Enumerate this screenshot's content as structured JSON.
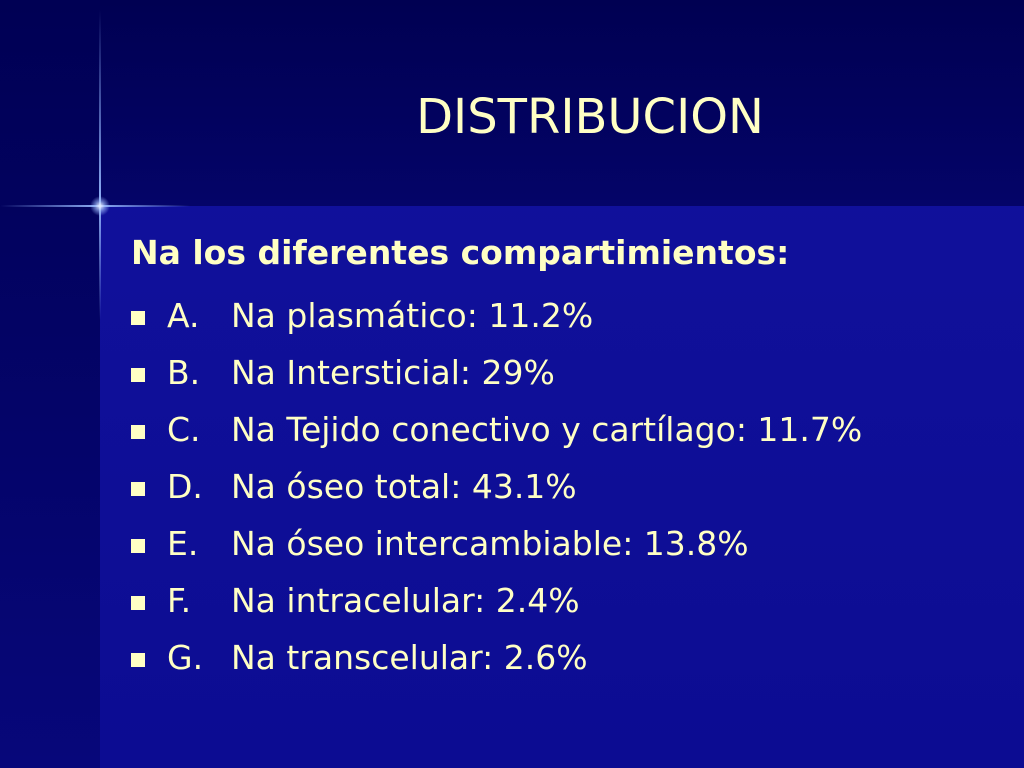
{
  "slide": {
    "title": "DISTRIBUCION",
    "subtitle": "Na los diferentes compartimientos:",
    "items": [
      {
        "letter": "A.",
        "text": "Na plasmático:  11.2%"
      },
      {
        "letter": "B.",
        "text": "Na Intersticial:  29%"
      },
      {
        "letter": "C.",
        "text": "Na Tejido conectivo y cartílago:  11.7%"
      },
      {
        "letter": "D.",
        "text": "Na óseo total:  43.1%"
      },
      {
        "letter": "E.",
        "text": "Na óseo intercambiable:  13.8%"
      },
      {
        "letter": "F.",
        "text": "Na intracelular:  2.4%"
      },
      {
        "letter": "G.",
        "text": "Na transcelular:  2.6%"
      }
    ]
  },
  "colors": {
    "background": "#0f0f9a",
    "top_band": "#000052",
    "text": "#ffffc4",
    "glow": "#96b9ff"
  },
  "icons": {
    "bullet": "square-bullet-icon",
    "decoration": "cross-glow-icon"
  }
}
